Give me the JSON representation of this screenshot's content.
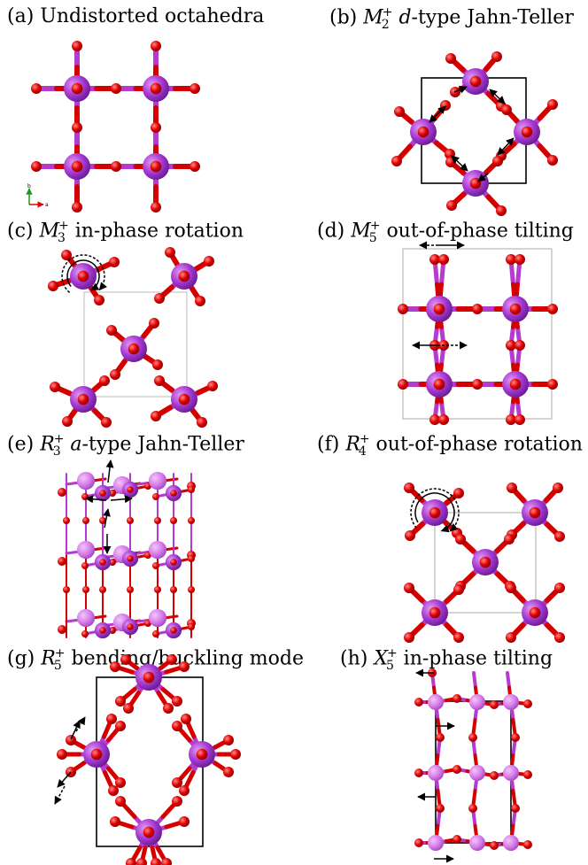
{
  "colors": {
    "metal": "#9a33c9",
    "metal_light": "#d26be6",
    "oxygen": "#e00000",
    "bond_metal": "#b43ad0",
    "bond_oxygen": "#d40000"
  },
  "panels": [
    {
      "id": "a",
      "label": "(a)",
      "title": "Undistorted octahedra",
      "axis_b": "b",
      "axis_a": "a"
    },
    {
      "id": "b",
      "label": "(b)",
      "sym": "M",
      "sub": "2",
      "sup": "+",
      "rest_italic": "d",
      "rest": "-type Jahn-Teller"
    },
    {
      "id": "c",
      "label": "(c)",
      "sym": "M",
      "sub": "3",
      "sup": "+",
      "rest": "in-phase rotation"
    },
    {
      "id": "d",
      "label": "(d)",
      "sym": "M",
      "sub": "5",
      "sup": "+",
      "rest": "out-of-phase tilting"
    },
    {
      "id": "e",
      "label": "(e)",
      "sym": "R",
      "sub": "3",
      "sup": "+",
      "rest_italic": "a",
      "rest": "-type Jahn-Teller"
    },
    {
      "id": "f",
      "label": "(f)",
      "sym": "R",
      "sub": "4",
      "sup": "+",
      "rest": "out-of-phase rotation"
    },
    {
      "id": "g",
      "label": "(g)",
      "sym": "R",
      "sub": "5",
      "sup": "+",
      "rest": "bending/buckling mode"
    },
    {
      "id": "h",
      "label": "(h)",
      "sym": "X",
      "sub": "5",
      "sup": "+",
      "rest": "in-phase tilting"
    }
  ]
}
